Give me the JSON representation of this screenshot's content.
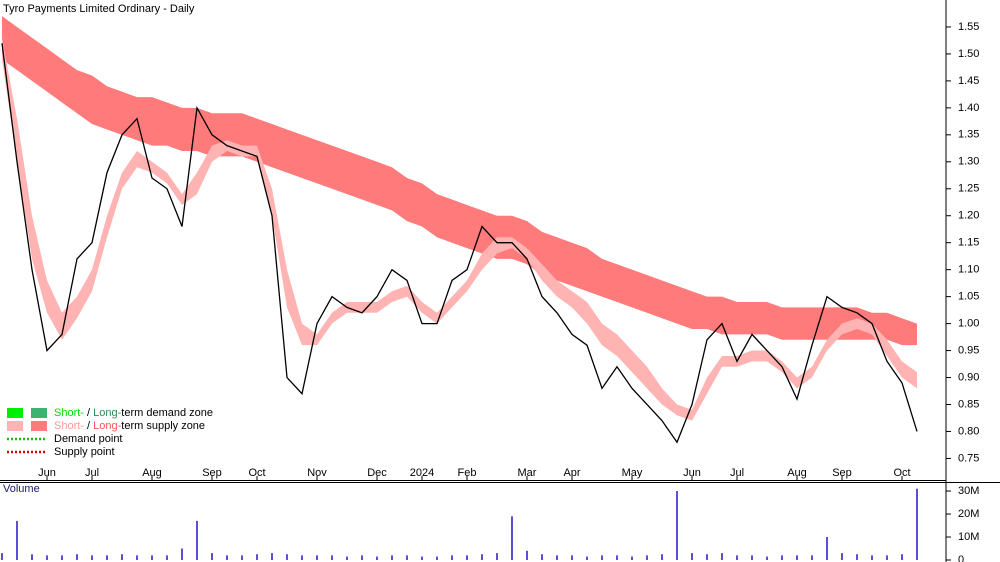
{
  "chart_data": [
    {
      "type": "line",
      "title": "Tyro Payments Limited Ordinary - Daily",
      "categories": [
        null,
        null,
        null,
        "Jun",
        null,
        null,
        "Jul",
        null,
        null,
        null,
        "Aug",
        null,
        null,
        null,
        "Sep",
        null,
        null,
        "Oct",
        null,
        null,
        null,
        "Nov",
        null,
        null,
        null,
        "Dec",
        null,
        null,
        "2024",
        null,
        null,
        "Feb",
        null,
        null,
        null,
        "Mar",
        null,
        null,
        "Apr",
        null,
        null,
        null,
        "May",
        null,
        null,
        null,
        "Jun",
        null,
        null,
        "Jul",
        null,
        null,
        null,
        "Aug",
        null,
        null,
        "Sep",
        null,
        null,
        null,
        "Oct",
        null
      ],
      "ylim": [
        0.71,
        1.6
      ],
      "yticks": [
        0.75,
        {
          "value": 0.8,
          "label": "0.80"
        },
        0.85,
        {
          "value": 0.9,
          "label": "0.90"
        },
        0.95,
        {
          "value": 1.0,
          "label": "1.00"
        },
        1.05,
        {
          "value": 1.1,
          "label": "1.10"
        },
        1.15,
        {
          "value": 1.2,
          "label": "1.20"
        },
        1.25,
        {
          "value": 1.3,
          "label": "1.30"
        },
        1.35,
        {
          "value": 1.4,
          "label": "1.40"
        },
        1.45,
        {
          "value": 1.5,
          "label": "1.50"
        },
        1.55
      ],
      "bands": [
        {
          "color": "#ff7b7b",
          "upper": [
            1.57,
            1.55,
            1.53,
            1.51,
            1.49,
            1.47,
            1.46,
            1.44,
            1.43,
            1.42,
            1.42,
            1.41,
            1.4,
            1.4,
            1.39,
            1.39,
            1.39,
            1.38,
            1.37,
            1.36,
            1.35,
            1.34,
            1.33,
            1.32,
            1.31,
            1.3,
            1.29,
            1.27,
            1.26,
            1.24,
            1.23,
            1.22,
            1.21,
            1.2,
            1.2,
            1.19,
            1.17,
            1.16,
            1.15,
            1.14,
            1.12,
            1.11,
            1.1,
            1.09,
            1.08,
            1.07,
            1.06,
            1.05,
            1.05,
            1.04,
            1.04,
            1.04,
            1.03,
            1.03,
            1.03,
            1.03,
            1.03,
            1.03,
            1.02,
            1.02,
            1.01,
            1.0
          ],
          "lower": [
            1.49,
            1.47,
            1.45,
            1.43,
            1.41,
            1.39,
            1.37,
            1.36,
            1.35,
            1.34,
            1.33,
            1.33,
            1.32,
            1.32,
            1.31,
            1.31,
            1.31,
            1.3,
            1.29,
            1.28,
            1.27,
            1.26,
            1.25,
            1.24,
            1.23,
            1.22,
            1.21,
            1.19,
            1.18,
            1.16,
            1.15,
            1.14,
            1.13,
            1.12,
            1.12,
            1.11,
            1.09,
            1.08,
            1.07,
            1.06,
            1.05,
            1.04,
            1.03,
            1.02,
            1.01,
            1.0,
            0.99,
            0.99,
            0.98,
            0.98,
            0.98,
            0.98,
            0.97,
            0.97,
            0.97,
            0.97,
            0.97,
            0.97,
            0.97,
            0.97,
            0.96,
            0.96
          ]
        },
        {
          "color": "#ffb3b3",
          "upper": [
            1.53,
            1.38,
            1.2,
            1.08,
            1.02,
            1.05,
            1.1,
            1.2,
            1.28,
            1.32,
            1.3,
            1.28,
            1.24,
            1.28,
            1.33,
            1.34,
            1.33,
            1.33,
            1.25,
            1.1,
            1.0,
            0.98,
            1.02,
            1.04,
            1.04,
            1.04,
            1.06,
            1.07,
            1.04,
            1.02,
            1.05,
            1.08,
            1.13,
            1.16,
            1.16,
            1.14,
            1.11,
            1.08,
            1.06,
            1.04,
            1.0,
            0.98,
            0.95,
            0.92,
            0.88,
            0.85,
            0.84,
            0.9,
            0.94,
            0.94,
            0.95,
            0.95,
            0.93,
            0.9,
            0.92,
            0.97,
            1.0,
            1.01,
            1.0,
            0.97,
            0.93,
            0.91
          ],
          "lower": [
            1.49,
            1.3,
            1.12,
            1.02,
            0.97,
            1.01,
            1.06,
            1.16,
            1.25,
            1.29,
            1.28,
            1.26,
            1.22,
            1.24,
            1.3,
            1.32,
            1.31,
            1.31,
            1.2,
            1.03,
            0.96,
            0.96,
            1.0,
            1.02,
            1.02,
            1.02,
            1.04,
            1.05,
            1.02,
            1.0,
            1.03,
            1.06,
            1.1,
            1.13,
            1.14,
            1.12,
            1.08,
            1.05,
            1.03,
            1.0,
            0.96,
            0.94,
            0.91,
            0.88,
            0.85,
            0.83,
            0.82,
            0.87,
            0.92,
            0.92,
            0.93,
            0.93,
            0.91,
            0.88,
            0.9,
            0.95,
            0.98,
            0.99,
            0.98,
            0.94,
            0.9,
            0.88
          ]
        }
      ],
      "series": [
        {
          "color": "#000000",
          "values": [
            1.52,
            1.3,
            1.1,
            0.95,
            0.98,
            1.12,
            1.15,
            1.28,
            1.35,
            1.38,
            1.27,
            1.25,
            1.18,
            1.4,
            1.35,
            1.33,
            1.32,
            1.31,
            1.2,
            0.9,
            0.87,
            1.0,
            1.05,
            1.03,
            1.02,
            1.05,
            1.1,
            1.08,
            1.0,
            1.0,
            1.08,
            1.1,
            1.18,
            1.15,
            1.15,
            1.12,
            1.05,
            1.02,
            0.98,
            0.96,
            0.88,
            0.92,
            0.88,
            0.85,
            0.82,
            0.78,
            0.85,
            0.97,
            1.0,
            0.93,
            0.98,
            0.95,
            0.92,
            0.86,
            0.96,
            1.05,
            1.03,
            1.02,
            1.0,
            0.93,
            0.89,
            0.8
          ]
        }
      ],
      "legend": [
        {
          "swatches": [
            "#00ee00",
            "#3cb371"
          ],
          "parts": [
            {
              "text": "Short-",
              "color": "#00dd00"
            },
            {
              "text": " / ",
              "color": "#000000"
            },
            {
              "text": "Long-",
              "color": "#2e8b57"
            },
            {
              "text": "term demand zone",
              "color": "#000000"
            }
          ]
        },
        {
          "swatches": [
            "#ffb3b3",
            "#ff7b7b"
          ],
          "parts": [
            {
              "text": "Short-",
              "color": "#ff9999"
            },
            {
              "text": " / ",
              "color": "#000000"
            },
            {
              "text": "Long-",
              "color": "#ff5555"
            },
            {
              "text": "term supply zone",
              "color": "#000000"
            }
          ]
        },
        {
          "dotted": "#00cc00",
          "parts": [
            {
              "text": "Demand point",
              "color": "#000000"
            }
          ]
        },
        {
          "dotted": "#dd0000",
          "parts": [
            {
              "text": "Supply point",
              "color": "#000000"
            }
          ]
        }
      ]
    },
    {
      "type": "bar",
      "title": "Volume",
      "color": "#5b4fd8",
      "ylim": [
        0,
        33500000
      ],
      "yticks": [
        0,
        {
          "value": 10000000,
          "label": "10M"
        },
        {
          "value": 20000000,
          "label": "20M"
        },
        {
          "value": 30000000,
          "label": "30M"
        }
      ],
      "values": [
        3000000,
        17000000,
        2500000,
        2000000,
        2000000,
        2500000,
        2000000,
        2000000,
        2500000,
        2000000,
        2000000,
        2000000,
        5000000,
        17000000,
        3000000,
        2000000,
        2000000,
        2500000,
        3000000,
        2500000,
        2000000,
        2000000,
        2000000,
        1500000,
        2000000,
        1500000,
        2000000,
        2000000,
        1500000,
        1500000,
        2000000,
        2000000,
        2500000,
        3000000,
        19000000,
        4000000,
        2500000,
        2000000,
        2000000,
        1500000,
        2000000,
        2000000,
        1500000,
        2000000,
        2500000,
        30000000,
        3000000,
        2500000,
        3000000,
        2000000,
        2000000,
        1500000,
        2000000,
        2000000,
        2000000,
        10000000,
        3000000,
        2500000,
        2000000,
        2000000,
        2500000,
        31000000
      ]
    }
  ]
}
